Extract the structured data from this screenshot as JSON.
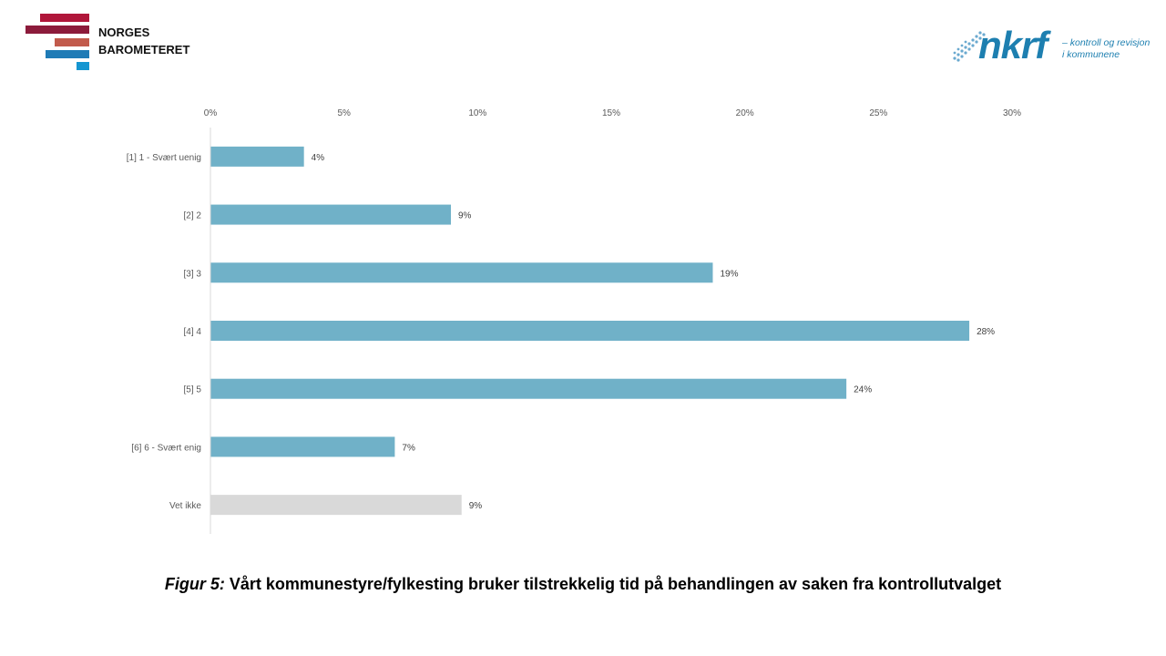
{
  "brand_left": {
    "line1": "NORGES",
    "line2": "BAROMETERET",
    "colors": [
      "#b0163a",
      "#8c1b3b",
      "#c25b4c",
      "#1f7bb6",
      "#1596d1"
    ]
  },
  "brand_right": {
    "name": "nkrf",
    "tagline_line1": "– kontroll og revisjon",
    "tagline_line2": "i kommunene",
    "color": "#1d7fb0"
  },
  "chart_data": {
    "type": "bar",
    "orientation": "horizontal",
    "categories": [
      "[1] 1 - Svært uenig",
      "[2] 2",
      "[3] 3",
      "[4] 4",
      "[5] 5",
      "[6] 6 - Svært enig",
      "Vet ikke"
    ],
    "values": [
      3.5,
      9,
      18.8,
      28.4,
      23.8,
      6.9,
      9.4
    ],
    "data_labels": [
      "4%",
      "9%",
      "19%",
      "28%",
      "24%",
      "7%",
      "9%"
    ],
    "xlim": [
      0,
      30
    ],
    "x_ticks": [
      "0%",
      "5%",
      "10%",
      "15%",
      "20%",
      "25%",
      "30%"
    ],
    "axis_position": "top",
    "grid": false,
    "bar_colors": [
      "#70b1c8",
      "#70b1c8",
      "#70b1c8",
      "#70b1c8",
      "#70b1c8",
      "#70b1c8",
      "#d9d9d9"
    ]
  },
  "caption": {
    "prefix": "Figur 5:",
    "text": " Vårt kommunestyre/fylkesting bruker tilstrekkelig tid på behandlingen av saken fra kontrollutvalget"
  }
}
